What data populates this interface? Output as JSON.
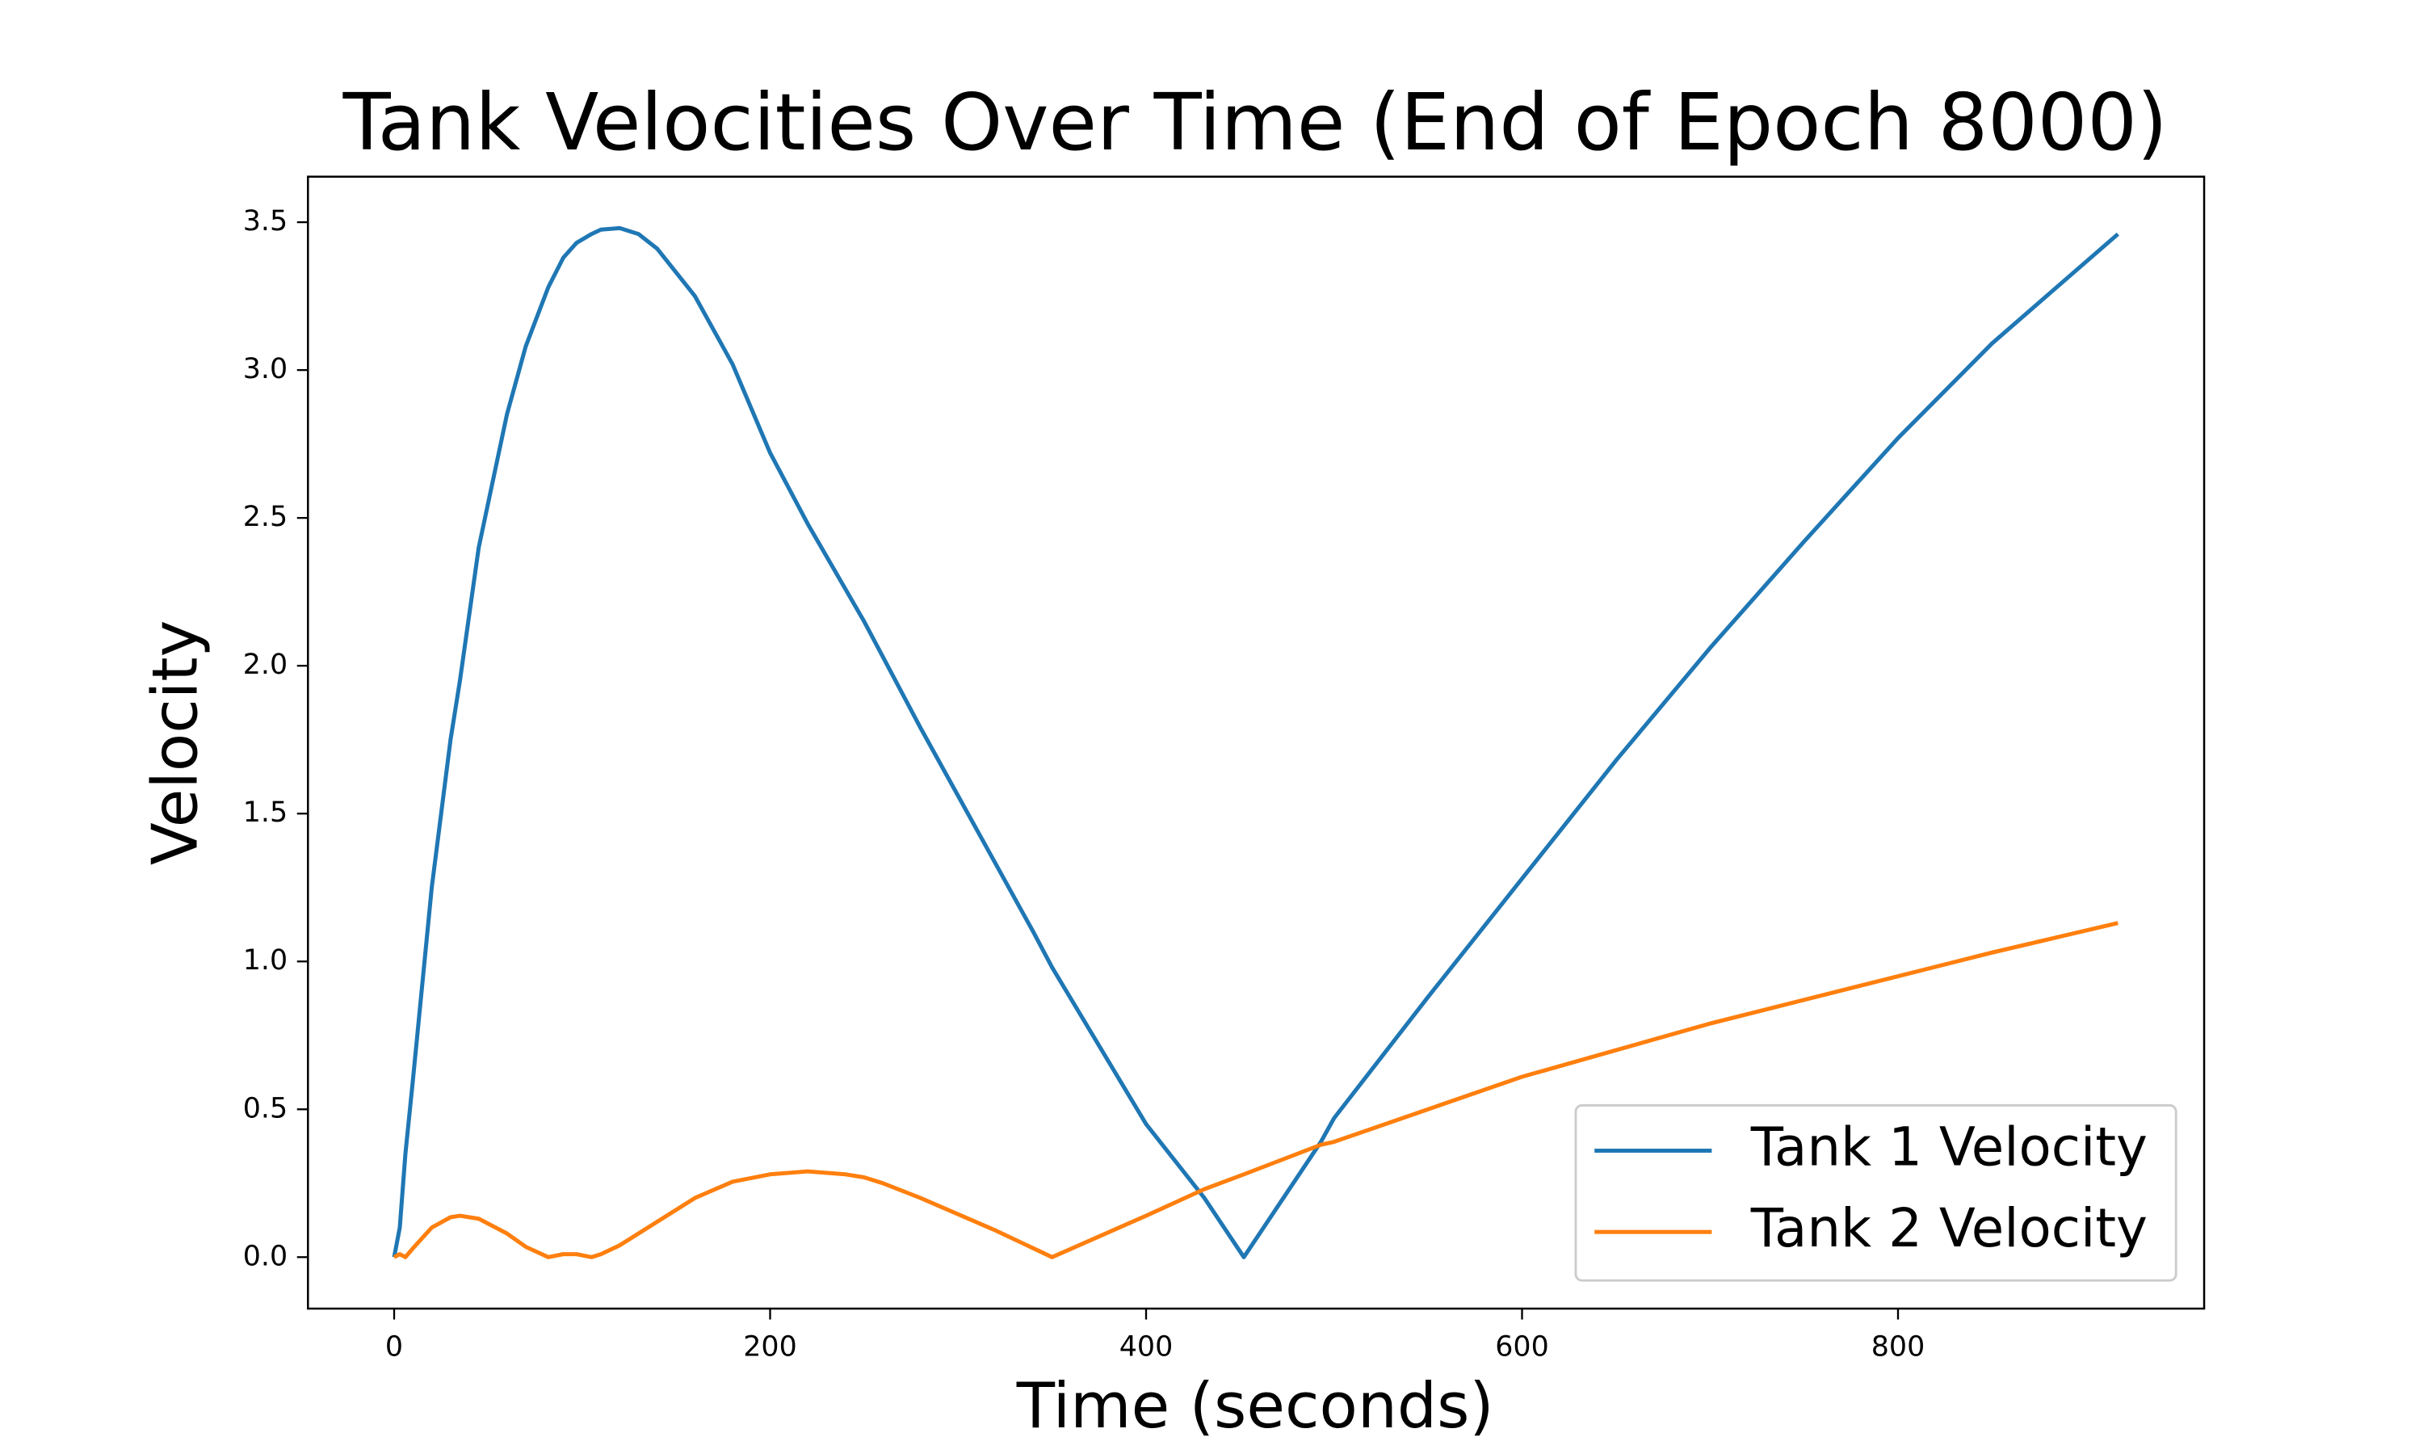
{
  "chart_data": {
    "type": "line",
    "title": "Tank Velocities Over Time (End of Epoch 8000)",
    "x_label": "Time (seconds)",
    "y_label": "Velocity",
    "x": [
      0,
      3,
      6,
      10,
      20,
      30,
      35,
      45,
      60,
      70,
      82,
      90,
      97,
      105,
      110,
      120,
      130,
      140,
      160,
      180,
      200,
      220,
      240,
      250,
      260,
      280,
      300,
      320,
      340,
      350,
      400,
      431,
      452,
      493,
      500,
      550,
      600,
      650,
      700,
      750,
      800,
      850,
      917
    ],
    "series": [
      {
        "name": "Tank 1 Velocity",
        "color": "#1f77b4",
        "values": [
          0,
          0.1,
          0.35,
          0.6,
          1.25,
          1.75,
          1.95,
          2.4,
          2.85,
          3.08,
          3.28,
          3.38,
          3.43,
          3.46,
          3.475,
          3.48,
          3.46,
          3.41,
          3.25,
          3.02,
          2.72,
          2.48,
          2.26,
          2.15,
          2.03,
          1.79,
          1.56,
          1.33,
          1.1,
          0.98,
          0.45,
          0.2,
          0,
          0.39,
          0.47,
          0.88,
          1.28,
          1.68,
          2.06,
          2.42,
          2.77,
          3.09,
          3.46
        ]
      },
      {
        "name": "Tank 2 Velocity",
        "color": "#ff7f0e",
        "values": [
          0,
          0.01,
          0,
          0.03,
          0.1,
          0.135,
          0.14,
          0.13,
          0.08,
          0.035,
          0,
          0.01,
          0.01,
          0,
          0.01,
          0.04,
          0.08,
          0.12,
          0.2,
          0.255,
          0.28,
          0.29,
          0.28,
          0.27,
          0.25,
          0.2,
          0.145,
          0.09,
          0.03,
          0,
          0.14,
          0.23,
          0.28,
          0.38,
          0.39,
          0.5,
          0.61,
          0.7,
          0.79,
          0.87,
          0.95,
          1.03,
          1.13
        ]
      }
    ],
    "xlim": [
      -45.85,
      962.85
    ],
    "ylim": [
      -0.174,
      3.654
    ],
    "xticks": [
      0,
      200,
      400,
      600,
      800
    ],
    "yticks": [
      {
        "value": 0,
        "label": "0.0"
      },
      0.5,
      {
        "value": 1,
        "label": "1.0"
      },
      1.5,
      {
        "value": 2,
        "label": "2.0"
      },
      2.5,
      {
        "value": 3,
        "label": "3.0"
      },
      3.5
    ],
    "legend": "lower right"
  }
}
